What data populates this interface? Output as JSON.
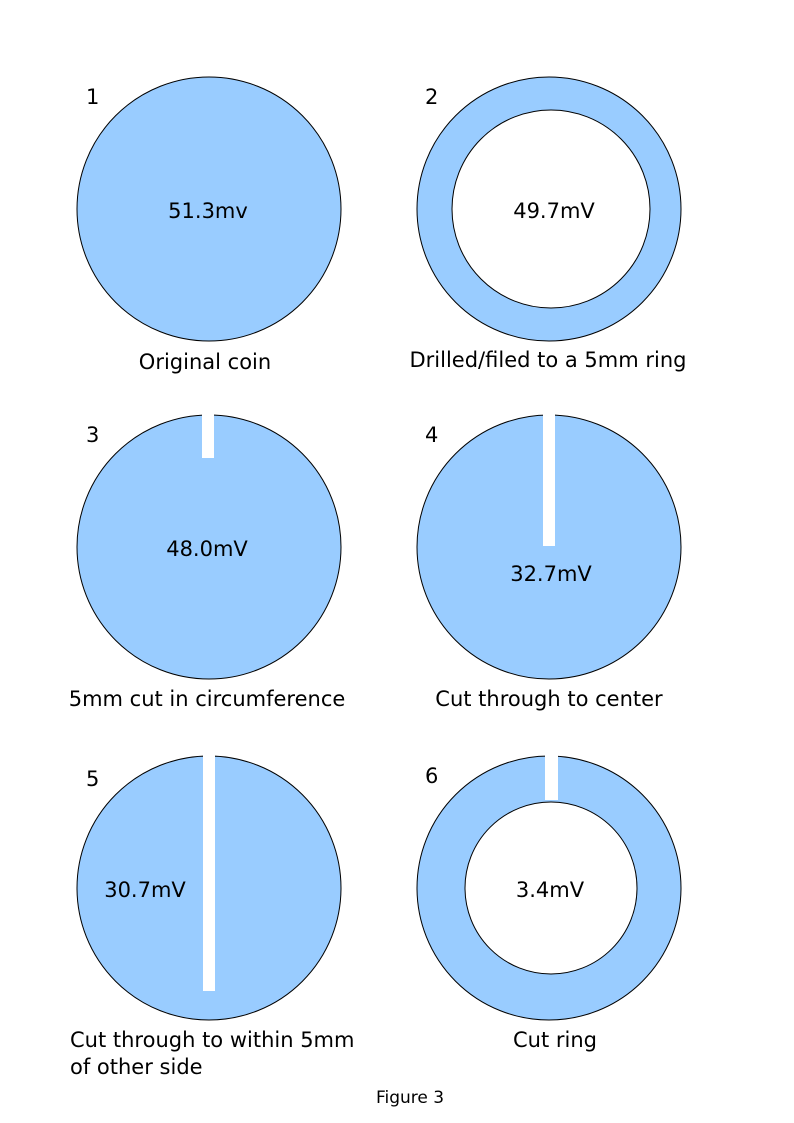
{
  "colors": {
    "coin_fill": "#99ccff",
    "outline": "#000000",
    "cut": "#ffffff"
  },
  "panels": [
    {
      "number": "1",
      "reading": "51.3mv",
      "caption": [
        "Original coin"
      ]
    },
    {
      "number": "2",
      "reading": "49.7mV",
      "caption": [
        "Drilled/filed to a 5mm ring"
      ]
    },
    {
      "number": "3",
      "reading": "48.0mV",
      "caption": [
        "5mm cut in circumference"
      ]
    },
    {
      "number": "4",
      "reading": "32.7mV",
      "caption": [
        "Cut through to center"
      ]
    },
    {
      "number": "5",
      "reading": "30.7mV",
      "caption": [
        "Cut through to within 5mm",
        "of other side"
      ]
    },
    {
      "number": "6",
      "reading": "3.4mV",
      "caption": [
        "Cut ring"
      ]
    }
  ],
  "figure_caption": "Figure 3"
}
